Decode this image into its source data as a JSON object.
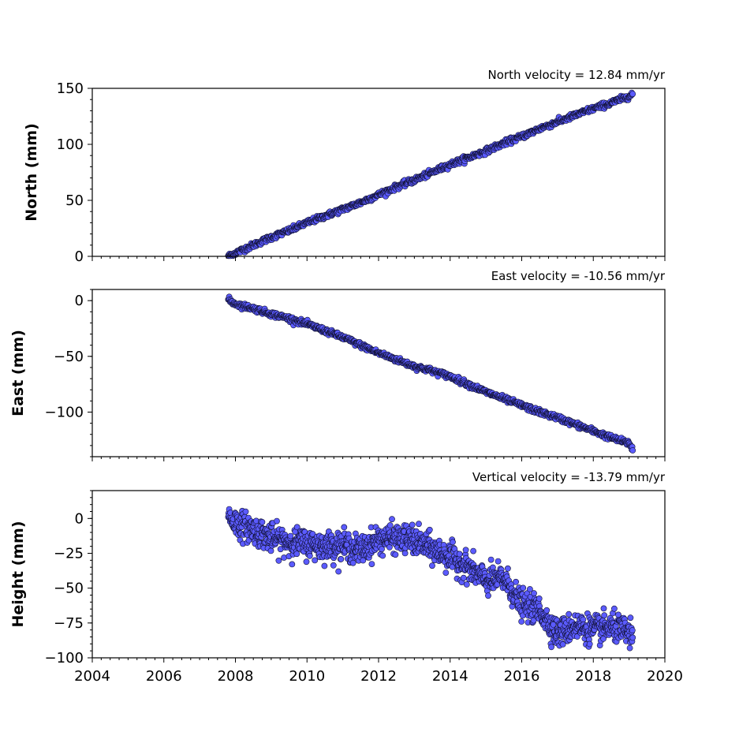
{
  "chart_data": [
    {
      "type": "scatter",
      "id": "north",
      "title": "",
      "annotation": "North velocity = 12.84 mm/yr",
      "ylabel": "North (mm)",
      "xlabel": "",
      "xlim": [
        2004,
        2020
      ],
      "ylim": [
        0,
        150
      ],
      "yticks": [
        0,
        50,
        100,
        150
      ],
      "ytick_labels": [
        "0",
        "50",
        "100",
        "150"
      ],
      "show_xtick_labels": false,
      "grid": false,
      "marker_color": "#5b5bff",
      "series": [
        {
          "x": [
            2007.8,
            2008.0,
            2008.5,
            2009.0,
            2009.5,
            2010.0,
            2010.5,
            2011.0,
            2011.5,
            2012.0,
            2012.5,
            2013.0,
            2013.5,
            2014.0,
            2014.5,
            2015.0,
            2015.5,
            2016.0,
            2016.5,
            2017.0,
            2017.5,
            2018.0,
            2018.5,
            2019.0,
            2019.1
          ],
          "y": [
            0,
            3,
            10,
            17,
            23,
            30,
            36,
            42,
            48,
            55,
            62,
            68,
            75,
            82,
            88,
            94,
            101,
            107,
            114,
            120,
            126,
            132,
            137,
            143,
            145
          ]
        }
      ]
    },
    {
      "type": "scatter",
      "id": "east",
      "title": "",
      "annotation": "East velocity = -10.56 mm/yr",
      "ylabel": "East (mm)",
      "xlabel": "",
      "xlim": [
        2004,
        2020
      ],
      "ylim": [
        -140,
        10
      ],
      "yticks": [
        0,
        -50,
        -100
      ],
      "ytick_labels": [
        "0",
        "−50",
        "−100"
      ],
      "show_xtick_labels": false,
      "grid": false,
      "marker_color": "#5b5bff",
      "series": [
        {
          "x": [
            2007.8,
            2008.0,
            2008.5,
            2009.0,
            2009.5,
            2010.0,
            2010.5,
            2011.0,
            2011.5,
            2012.0,
            2012.5,
            2013.0,
            2013.5,
            2014.0,
            2014.5,
            2015.0,
            2015.5,
            2016.0,
            2016.5,
            2017.0,
            2017.5,
            2018.0,
            2018.5,
            2019.0,
            2019.1
          ],
          "y": [
            1,
            -3,
            -7,
            -12,
            -16,
            -21,
            -27,
            -33,
            -40,
            -47,
            -53,
            -59,
            -63,
            -68,
            -75,
            -82,
            -88,
            -94,
            -100,
            -105,
            -111,
            -117,
            -123,
            -128,
            -133
          ]
        }
      ]
    },
    {
      "type": "scatter",
      "id": "height",
      "title": "",
      "annotation": "Vertical velocity = -13.79 mm/yr",
      "ylabel": "Height (mm)",
      "xlabel": "",
      "xlim": [
        2004,
        2020
      ],
      "ylim": [
        -100,
        20
      ],
      "yticks": [
        0,
        -25,
        -50,
        -75,
        -100
      ],
      "ytick_labels": [
        "0",
        "−25",
        "−50",
        "−75",
        "−100"
      ],
      "xticks": [
        2004,
        2006,
        2008,
        2010,
        2012,
        2014,
        2016,
        2018,
        2020
      ],
      "xtick_labels": [
        "2004",
        "2006",
        "2008",
        "2010",
        "2012",
        "2014",
        "2016",
        "2018",
        "2020"
      ],
      "show_xtick_labels": true,
      "grid": false,
      "marker_color": "#5b5bff",
      "series": [
        {
          "x": [
            2007.8,
            2008.0,
            2008.5,
            2009.0,
            2009.5,
            2010.0,
            2010.5,
            2011.0,
            2011.5,
            2012.0,
            2012.5,
            2013.0,
            2013.5,
            2014.0,
            2014.5,
            2015.0,
            2015.5,
            2016.0,
            2016.5,
            2017.0,
            2017.5,
            2018.0,
            2018.5,
            2019.0,
            2019.1
          ],
          "y": [
            2,
            -3,
            -8,
            -14,
            -17,
            -18,
            -20,
            -19,
            -23,
            -15,
            -14,
            -16,
            -22,
            -28,
            -35,
            -45,
            -43,
            -62,
            -66,
            -83,
            -77,
            -80,
            -78,
            -82,
            -88
          ]
        }
      ]
    }
  ]
}
